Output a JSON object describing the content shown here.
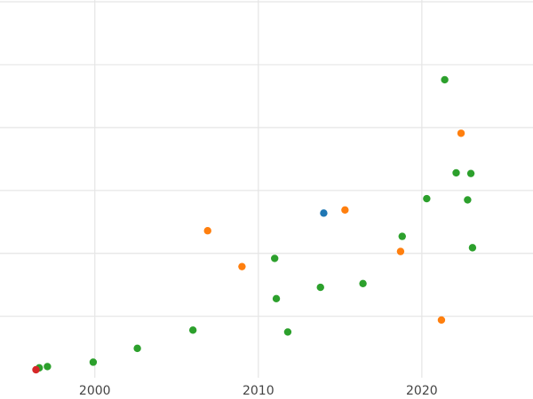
{
  "chart_data": {
    "type": "scatter",
    "title": "",
    "xlabel": "",
    "ylabel": "",
    "xlim": [
      1994.2,
      2026.8
    ],
    "ylim": [
      0,
      5.85
    ],
    "x_ticks": [
      2000,
      2010,
      2020
    ],
    "x_tick_labels": [
      "2000",
      "2010",
      "2020"
    ],
    "y_gridlines": [
      0.85,
      1.85,
      2.85,
      3.85,
      4.85,
      5.85
    ],
    "show_y_tick_labels": false,
    "grid": true,
    "legend": "none",
    "colors": {
      "blue": "#1f77b4",
      "orange": "#ff7f0e",
      "green": "#2ca02c",
      "red": "#d62728",
      "grid": "#e5e5e5"
    },
    "series": [
      {
        "color": "#2ca02c",
        "points": [
          {
            "x": 1996.6,
            "y": 0.03
          },
          {
            "x": 1997.1,
            "y": 0.05
          },
          {
            "x": 1999.9,
            "y": 0.12
          },
          {
            "x": 2002.6,
            "y": 0.34
          },
          {
            "x": 2006.0,
            "y": 0.63
          },
          {
            "x": 2011.0,
            "y": 1.77
          },
          {
            "x": 2011.1,
            "y": 1.13
          },
          {
            "x": 2011.8,
            "y": 0.6
          },
          {
            "x": 2013.8,
            "y": 1.31
          },
          {
            "x": 2016.4,
            "y": 1.37
          },
          {
            "x": 2018.8,
            "y": 2.12
          },
          {
            "x": 2020.3,
            "y": 2.72
          },
          {
            "x": 2021.4,
            "y": 4.61
          },
          {
            "x": 2022.1,
            "y": 3.13
          },
          {
            "x": 2022.8,
            "y": 2.7
          },
          {
            "x": 2023.0,
            "y": 3.12
          },
          {
            "x": 2023.1,
            "y": 1.94
          }
        ]
      },
      {
        "color": "#ff7f0e",
        "points": [
          {
            "x": 2006.9,
            "y": 2.21
          },
          {
            "x": 2009.0,
            "y": 1.64
          },
          {
            "x": 2015.3,
            "y": 2.54
          },
          {
            "x": 2018.7,
            "y": 1.88
          },
          {
            "x": 2021.2,
            "y": 0.79
          },
          {
            "x": 2022.4,
            "y": 3.76
          }
        ]
      },
      {
        "color": "#1f77b4",
        "points": [
          {
            "x": 2014.0,
            "y": 2.49
          }
        ]
      },
      {
        "color": "#d62728",
        "points": [
          {
            "x": 1996.4,
            "y": 0.0
          }
        ]
      }
    ]
  }
}
